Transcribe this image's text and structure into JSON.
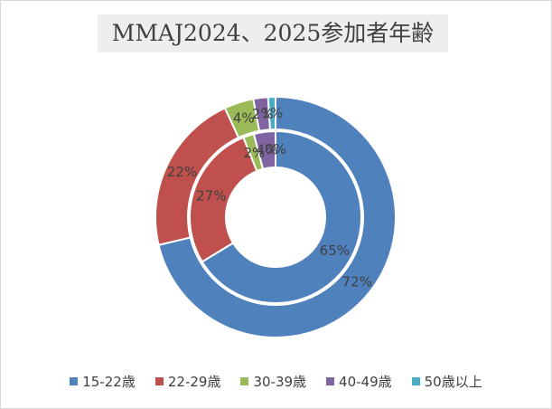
{
  "chart_data": {
    "type": "pie",
    "subtype": "doughnut",
    "title": "MMAJ2024、2025参加者年齢",
    "categories": [
      "15-22歳",
      "22-29歳",
      "30-39歳",
      "40-49歳",
      "50歳以上"
    ],
    "colors": [
      "#4f81bd",
      "#c0504d",
      "#9bbb59",
      "#8064a2",
      "#4bacc6"
    ],
    "series": [
      {
        "ring": "inner",
        "values": [
          65,
          27,
          2,
          4,
          0
        ]
      },
      {
        "ring": "outer",
        "values": [
          72,
          22,
          4,
          2,
          1
        ]
      }
    ],
    "data_labels": {
      "inner": [
        "65%",
        "27%",
        "2%",
        "4%",
        "0%"
      ],
      "outer": [
        "72%",
        "22%",
        "4%",
        "2%",
        "1%"
      ]
    },
    "legend_position": "bottom"
  }
}
